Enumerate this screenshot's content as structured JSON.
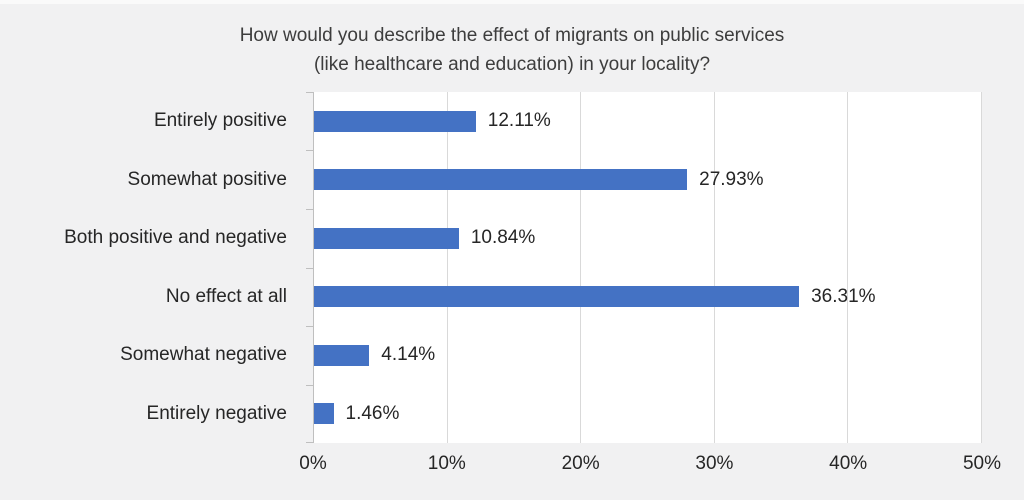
{
  "chart_data": {
    "type": "bar",
    "orientation": "horizontal",
    "title": "How would you describe the effect of migrants on public services (like healthcare and education) in your locality?",
    "title_lines": [
      "How would you describe the effect of migrants on public services",
      "(like healthcare and education) in your locality?"
    ],
    "categories": [
      "Entirely positive",
      "Somewhat positive",
      "Both positive and negative",
      "No effect at all",
      "Somewhat negative",
      "Entirely negative"
    ],
    "values": [
      12.11,
      27.93,
      10.84,
      36.31,
      4.14,
      1.46
    ],
    "value_labels": [
      "12.11%",
      "27.93%",
      "10.84%",
      "36.31%",
      "4.14%",
      "1.46%"
    ],
    "xlabel": "",
    "ylabel": "",
    "xlim": [
      0,
      50
    ],
    "x_ticks": [
      0,
      10,
      20,
      30,
      40,
      50
    ],
    "x_tick_labels": [
      "0%",
      "10%",
      "20%",
      "30%",
      "40%",
      "50%"
    ],
    "grid": "vertical",
    "legend": "none",
    "colors": {
      "bar": "#4472c4",
      "background": "#f1f1f2",
      "plot_background": "#ffffff",
      "gridline": "#d9d9d9",
      "axis_line": "#bfbfbf",
      "text": "#262626",
      "title_text": "#3d3d3d"
    }
  }
}
